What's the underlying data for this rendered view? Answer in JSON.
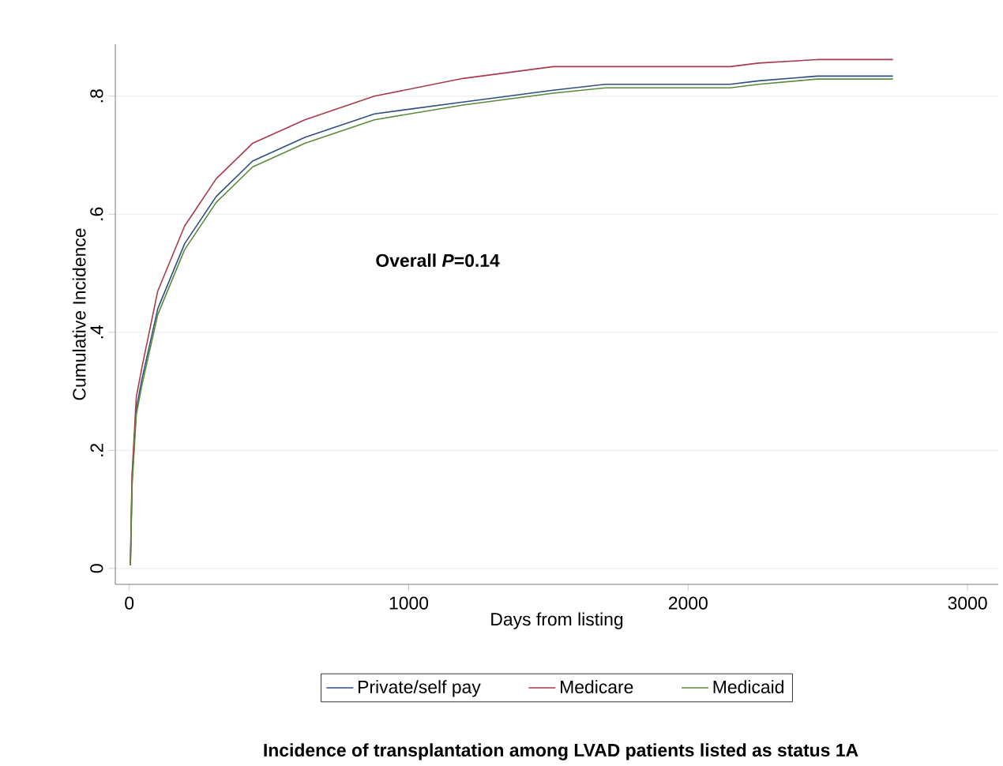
{
  "chart_data": {
    "type": "line",
    "title": "Incidence of transplantation among LVAD patients listed as status 1A",
    "xlabel": "Days from listing",
    "ylabel": "Cumulative Incidence",
    "annotations": [
      "Overall *P*=0.14"
    ],
    "xlim": [
      -50,
      3110
    ],
    "ylim": [
      -0.027,
      0.888
    ],
    "xticks": [
      0,
      1000,
      2000,
      3000
    ],
    "yticks": [
      {
        "value": 0,
        "label": "0"
      },
      {
        "value": 0.2,
        "label": ".2"
      },
      {
        "value": 0.4,
        "label": ".4"
      },
      {
        "value": 0.6,
        "label": ".6"
      },
      {
        "value": 0.8,
        "label": ".8"
      }
    ],
    "grid": "y",
    "legend": "bottom",
    "x": [
      4,
      10,
      25,
      45,
      102,
      198,
      311,
      441,
      628,
      877,
      1194,
      1517,
      1703,
      2150,
      2252,
      2462,
      2733
    ],
    "series": [
      {
        "name": "Private/self pay",
        "color": "#2e4f7f",
        "values": [
          0.005,
          0.15,
          0.27,
          0.32,
          0.44,
          0.55,
          0.63,
          0.69,
          0.73,
          0.77,
          0.79,
          0.81,
          0.82,
          0.82,
          0.826,
          0.834,
          0.834
        ]
      },
      {
        "name": "Medicare",
        "color": "#a83a4a",
        "values": [
          0.005,
          0.16,
          0.29,
          0.34,
          0.47,
          0.58,
          0.66,
          0.72,
          0.76,
          0.8,
          0.83,
          0.85,
          0.85,
          0.85,
          0.856,
          0.862,
          0.862
        ]
      },
      {
        "name": "Medicaid",
        "color": "#5a8a3a",
        "values": [
          0.005,
          0.14,
          0.26,
          0.31,
          0.43,
          0.54,
          0.62,
          0.68,
          0.72,
          0.76,
          0.785,
          0.805,
          0.814,
          0.814,
          0.82,
          0.829,
          0.829
        ]
      }
    ]
  }
}
